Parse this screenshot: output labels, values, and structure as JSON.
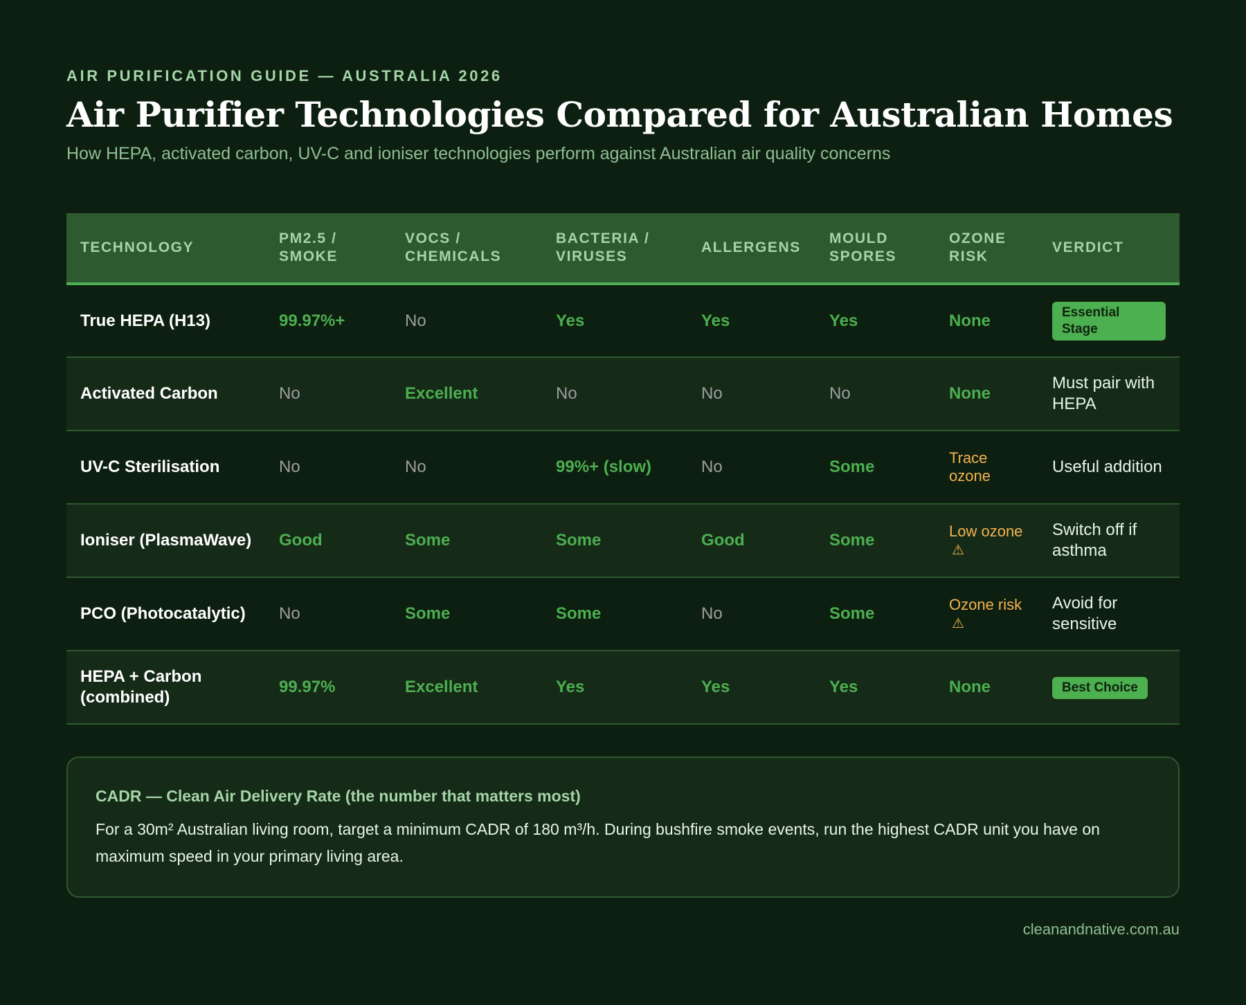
{
  "header": {
    "eyebrow": "AIR PURIFICATION GUIDE — AUSTRALIA 2026",
    "title": "Air Purifier Technologies Compared for Australian Homes",
    "subtitle": "How HEPA, activated carbon, UV-C and ioniser technologies perform against Australian air quality concerns"
  },
  "colors": {
    "background": "#0d1f10",
    "header_row": "#2e5a2f",
    "accent_green": "#4caf50",
    "warning_orange": "#f4b350",
    "muted_gray": "#9e9e9e",
    "label_green": "#a5d6a7"
  },
  "table": {
    "columns": [
      "TECHNOLOGY",
      "PM2.5 / SMOKE",
      "VOCS / CHEMICALS",
      "BACTERIA / VIRUSES",
      "ALLERGENS",
      "MOULD SPORES",
      "OZONE RISK",
      "VERDICT"
    ],
    "rows": [
      {
        "technology": "True HEPA (H13)",
        "pm25": "99.97%+",
        "vocs": "No",
        "bacteria": "Yes",
        "allergens": "Yes",
        "mould": "Yes",
        "ozone": "None",
        "verdict": "Essential Stage",
        "verdict_type": "badge"
      },
      {
        "technology": "Activated Carbon",
        "pm25": "No",
        "vocs": "Excellent",
        "bacteria": "No",
        "allergens": "No",
        "mould": "No",
        "ozone": "None",
        "verdict": "Must pair with HEPA",
        "verdict_type": "text"
      },
      {
        "technology": "UV-C Sterilisation",
        "pm25": "No",
        "vocs": "No",
        "bacteria": "99%+ (slow)",
        "allergens": "No",
        "mould": "Some",
        "ozone": "Trace ozone",
        "verdict": "Useful addition",
        "verdict_type": "text"
      },
      {
        "technology": "Ioniser (PlasmaWave)",
        "pm25": "Good",
        "vocs": "Some",
        "bacteria": "Some",
        "allergens": "Good",
        "mould": "Some",
        "ozone": "Low ozone",
        "ozone_icon": "warning-icon",
        "verdict": "Switch off if asthma",
        "verdict_type": "text"
      },
      {
        "technology": "PCO (Photocatalytic)",
        "pm25": "No",
        "vocs": "Some",
        "bacteria": "Some",
        "allergens": "No",
        "mould": "Some",
        "ozone": "Ozone risk",
        "ozone_icon": "warning-icon",
        "verdict": "Avoid for sensitive",
        "verdict_type": "text"
      },
      {
        "technology": "HEPA + Carbon (combined)",
        "pm25": "99.97%",
        "vocs": "Excellent",
        "bacteria": "Yes",
        "allergens": "Yes",
        "mould": "Yes",
        "ozone": "None",
        "verdict": "Best Choice",
        "verdict_type": "badge"
      }
    ],
    "icons": {
      "warning": "⚠"
    }
  },
  "callout": {
    "title": "CADR — Clean Air Delivery Rate (the number that matters most)",
    "body": "For a 30m² Australian living room, target a minimum CADR of 180 m³/h. During bushfire smoke events, run the highest CADR unit you have on maximum speed in your primary living area."
  },
  "footer": {
    "source": "cleanandnative.com.au"
  }
}
